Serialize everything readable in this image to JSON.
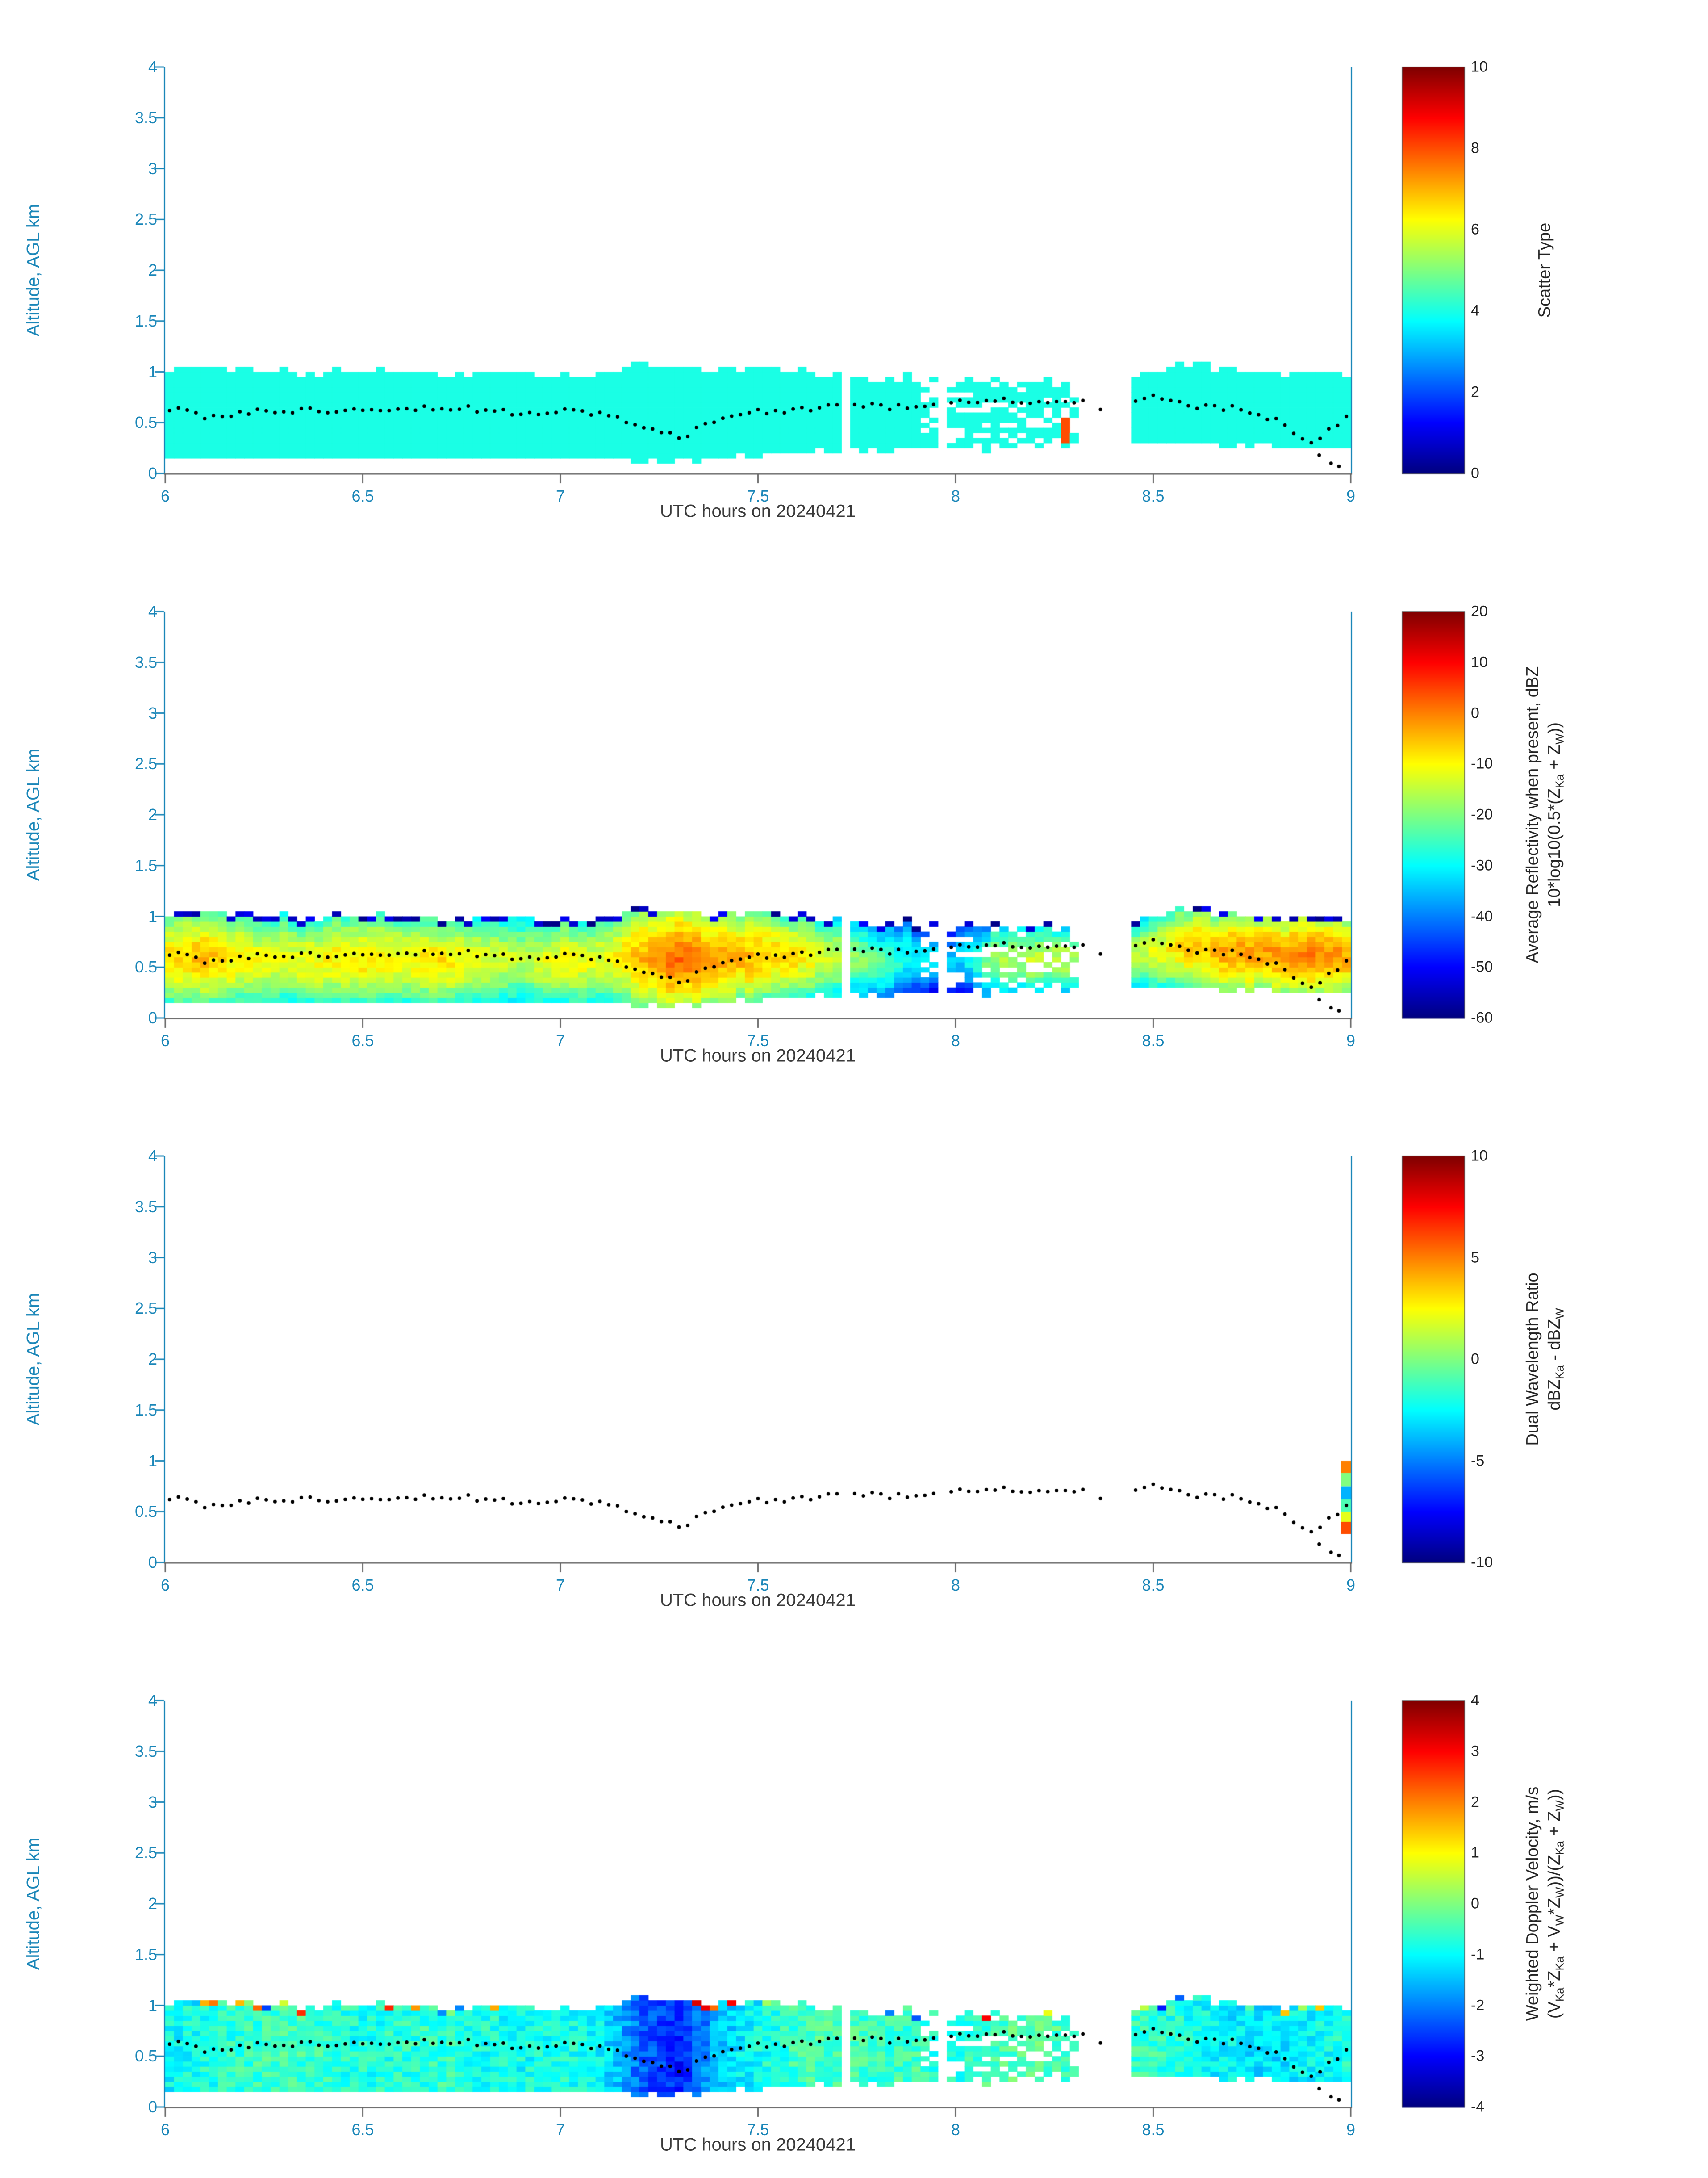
{
  "figure": {
    "ylabel": "Altitude, AGL km",
    "xlabel": "UTC hours on 20240421",
    "xlim": [
      6,
      9
    ],
    "ylim": [
      0,
      4
    ],
    "x_ticks": [
      6,
      6.5,
      7,
      7.5,
      8,
      8.5,
      9
    ],
    "y_ticks": [
      0,
      0.5,
      1,
      1.5,
      2,
      2.5,
      3,
      3.5,
      4
    ]
  },
  "style": {
    "axis_color": "#1a86b8",
    "x_axis_line_color": "#666666",
    "x_label_color": "#3a3a3a",
    "colorbar_tick_color": "#222222",
    "dot_color": "#000000",
    "background": "#ffffff",
    "colormap": "jet",
    "scatter_fill_color": "#1affe6"
  },
  "profile": {
    "key_times_utc": [
      6,
      6.1,
      6.2,
      6.3,
      6.4,
      6.5,
      6.6,
      6.7,
      6.8,
      6.9,
      7,
      7.1,
      7.2,
      7.3,
      7.4,
      7.5,
      7.6,
      7.7,
      7.8,
      7.9,
      8,
      8.1,
      8.2,
      8.3,
      8.4,
      8.5,
      8.6,
      8.7,
      8.8,
      8.9,
      9
    ],
    "cloud_top_km": [
      1.02,
      1.06,
      1.04,
      1.0,
      0.98,
      1.0,
      1.0,
      1.0,
      0.98,
      1.0,
      1.0,
      0.98,
      1.1,
      1.06,
      1.04,
      1.06,
      1.0,
      0.96,
      0.92,
      0.95,
      0.92,
      0.93,
      0.9,
      0.88,
      0.92,
      1.0,
      1.08,
      1.02,
      0.97,
      0.96,
      1.0
    ],
    "cloud_bottom_km": [
      0.15,
      0.15,
      0.15,
      0.14,
      0.15,
      0.16,
      0.15,
      0.15,
      0.15,
      0.15,
      0.15,
      0.16,
      0.13,
      0.12,
      0.15,
      0.18,
      0.2,
      0.22,
      0.24,
      0.25,
      0.25,
      0.24,
      0.26,
      0.28,
      0.3,
      0.3,
      0.3,
      0.28,
      0.26,
      0.25,
      0.28
    ],
    "cloud_base_dots_km": [
      0.65,
      0.55,
      0.6,
      0.62,
      0.62,
      0.65,
      0.64,
      0.65,
      0.63,
      0.6,
      0.62,
      0.6,
      0.45,
      0.35,
      0.55,
      0.6,
      0.63,
      0.67,
      0.66,
      0.65,
      0.7,
      0.72,
      0.7,
      0.72,
      0.6,
      0.75,
      0.66,
      0.64,
      0.55,
      0.3,
      0.6
    ],
    "extra_dots": [
      [
        8.92,
        0.18
      ],
      [
        8.95,
        0.1
      ],
      [
        8.97,
        0.07
      ]
    ],
    "gaps_utc": [
      [
        7.715,
        7.74
      ],
      [
        7.955,
        7.98
      ],
      [
        8.32,
        8.45
      ]
    ],
    "sparse_region_utc": [
      7.9,
      8.32
    ]
  },
  "chart_data": [
    {
      "type": "heatmap",
      "title": "",
      "xlabel": "UTC hours on 20240421",
      "ylabel": "Altitude, AGL km",
      "xlim": [
        6,
        9
      ],
      "ylim": [
        0,
        4
      ],
      "x_ticks": [
        6,
        6.5,
        7,
        7.5,
        8,
        8.5,
        9
      ],
      "y_ticks": [
        0,
        0.5,
        1,
        1.5,
        2,
        2.5,
        3,
        3.5,
        4
      ],
      "colorbar": {
        "label_lines": [
          [
            {
              "text": "Scatter Type"
            }
          ]
        ],
        "min": 0,
        "max": 10,
        "ticks": [
          10,
          8,
          6,
          4,
          2,
          0
        ]
      },
      "scatter_type_value": 4,
      "overrides": [
        {
          "t0": 8.262,
          "t1": 8.292,
          "a0": 0.28,
          "a1": 0.56,
          "value": 8
        }
      ]
    },
    {
      "type": "heatmap",
      "title": "",
      "xlabel": "UTC hours on 20240421",
      "ylabel": "Altitude, AGL km",
      "xlim": [
        6,
        9
      ],
      "ylim": [
        0,
        4
      ],
      "x_ticks": [
        6,
        6.5,
        7,
        7.5,
        8,
        8.5,
        9
      ],
      "y_ticks": [
        0,
        0.5,
        1,
        1.5,
        2,
        2.5,
        3,
        3.5,
        4
      ],
      "colorbar": {
        "label_lines": [
          [
            {
              "text": "Average Reflectivity when present, dBZ"
            }
          ],
          [
            {
              "text": "10*log10(0.5*(Z"
            },
            {
              "text": "Ka",
              "sub": true
            },
            {
              "text": " + Z"
            },
            {
              "text": "W",
              "sub": true
            },
            {
              "text": "))"
            }
          ]
        ],
        "min": -60,
        "max": 20,
        "ticks": [
          20,
          10,
          0,
          -10,
          -20,
          -30,
          -40,
          -50,
          -60
        ]
      },
      "peak_values_dbz": [
        -8,
        -5,
        -10,
        -12,
        -10,
        -8,
        -10,
        -8,
        -12,
        -15,
        -10,
        -12,
        -5,
        2,
        -3,
        -5,
        -8,
        -15,
        -22,
        -30,
        -35,
        -18,
        -14,
        -16,
        -20,
        -12,
        -6,
        -3,
        -2,
        0,
        -3
      ],
      "edge_falloff_db": 18
    },
    {
      "type": "scatter",
      "title": "",
      "xlabel": "UTC hours on 20240421",
      "ylabel": "Altitude, AGL km",
      "xlim": [
        6,
        9
      ],
      "ylim": [
        0,
        4
      ],
      "x_ticks": [
        6,
        6.5,
        7,
        7.5,
        8,
        8.5,
        9
      ],
      "y_ticks": [
        0,
        0.5,
        1,
        1.5,
        2,
        2.5,
        3,
        3.5,
        4
      ],
      "colorbar": {
        "label_lines": [
          [
            {
              "text": "Dual Wavelength Ratio"
            }
          ],
          [
            {
              "text": "dBZ"
            },
            {
              "text": "Ka",
              "sub": true
            },
            {
              "text": " - dBZ"
            },
            {
              "text": "W",
              "sub": true
            }
          ]
        ],
        "min": -10,
        "max": 10,
        "ticks": [
          10,
          5,
          0,
          -5,
          -10
        ]
      },
      "right_column": {
        "t0": 8.975,
        "t1": 9.0,
        "cells": [
          [
            0.28,
            0.4,
            6
          ],
          [
            0.4,
            0.5,
            2
          ],
          [
            0.5,
            0.62,
            -1
          ],
          [
            0.62,
            0.75,
            -4
          ],
          [
            0.75,
            0.88,
            0
          ],
          [
            0.88,
            1.0,
            5
          ]
        ]
      }
    },
    {
      "type": "heatmap",
      "title": "",
      "xlabel": "UTC hours on 20240421",
      "ylabel": "Altitude, AGL km",
      "xlim": [
        6,
        9
      ],
      "ylim": [
        0,
        4
      ],
      "x_ticks": [
        6,
        6.5,
        7,
        7.5,
        8,
        8.5,
        9
      ],
      "y_ticks": [
        0,
        0.5,
        1,
        1.5,
        2,
        2.5,
        3,
        3.5,
        4
      ],
      "colorbar": {
        "label_lines": [
          [
            {
              "text": "Weighted Doppler Velocity, m/s"
            }
          ],
          [
            {
              "text": "(V"
            },
            {
              "text": "Ka",
              "sub": true
            },
            {
              "text": "*Z"
            },
            {
              "text": "Ka",
              "sub": true
            },
            {
              "text": " + V"
            },
            {
              "text": "W",
              "sub": true
            },
            {
              "text": "*Z"
            },
            {
              "text": "W",
              "sub": true
            },
            {
              "text": "))/(Z"
            },
            {
              "text": "Ka",
              "sub": true
            },
            {
              "text": " + Z"
            },
            {
              "text": "W",
              "sub": true
            },
            {
              "text": "))"
            }
          ]
        ],
        "min": -4,
        "max": 4,
        "ticks": [
          4,
          3,
          2,
          1,
          0,
          -1,
          -2,
          -3,
          -4
        ]
      },
      "mean_values_ms": [
        -1.0,
        -0.8,
        -0.6,
        -0.5,
        -0.6,
        -0.8,
        -0.7,
        -0.6,
        -0.8,
        -0.9,
        -0.8,
        -1.0,
        -2.2,
        -2.8,
        -1.5,
        -0.9,
        -0.5,
        -0.4,
        -0.6,
        -0.5,
        -0.8,
        -0.4,
        -0.3,
        -0.5,
        -0.6,
        -0.6,
        -0.9,
        -1.1,
        -1.2,
        -1.0,
        -0.8
      ]
    }
  ]
}
